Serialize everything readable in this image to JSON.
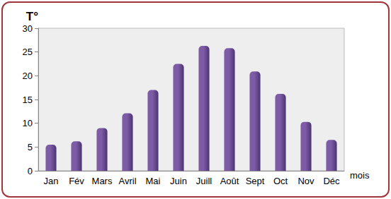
{
  "chart_data": {
    "type": "bar",
    "y_label": "T°",
    "x_label": "mois",
    "categories": [
      "Jan",
      "Fév",
      "Mars",
      "Avril",
      "Mai",
      "Juin",
      "Juill",
      "Août",
      "Sept",
      "Oct",
      "Nov",
      "Déc"
    ],
    "values": [
      5.5,
      6.2,
      9,
      12.1,
      17,
      22.5,
      26.3,
      25.8,
      20.9,
      16.2,
      10.3,
      6.5
    ],
    "color": "#7d5ba6",
    "ylim": [
      0,
      30
    ],
    "yticks": [
      0,
      5,
      10,
      15,
      20,
      25,
      30
    ],
    "grid": false
  }
}
